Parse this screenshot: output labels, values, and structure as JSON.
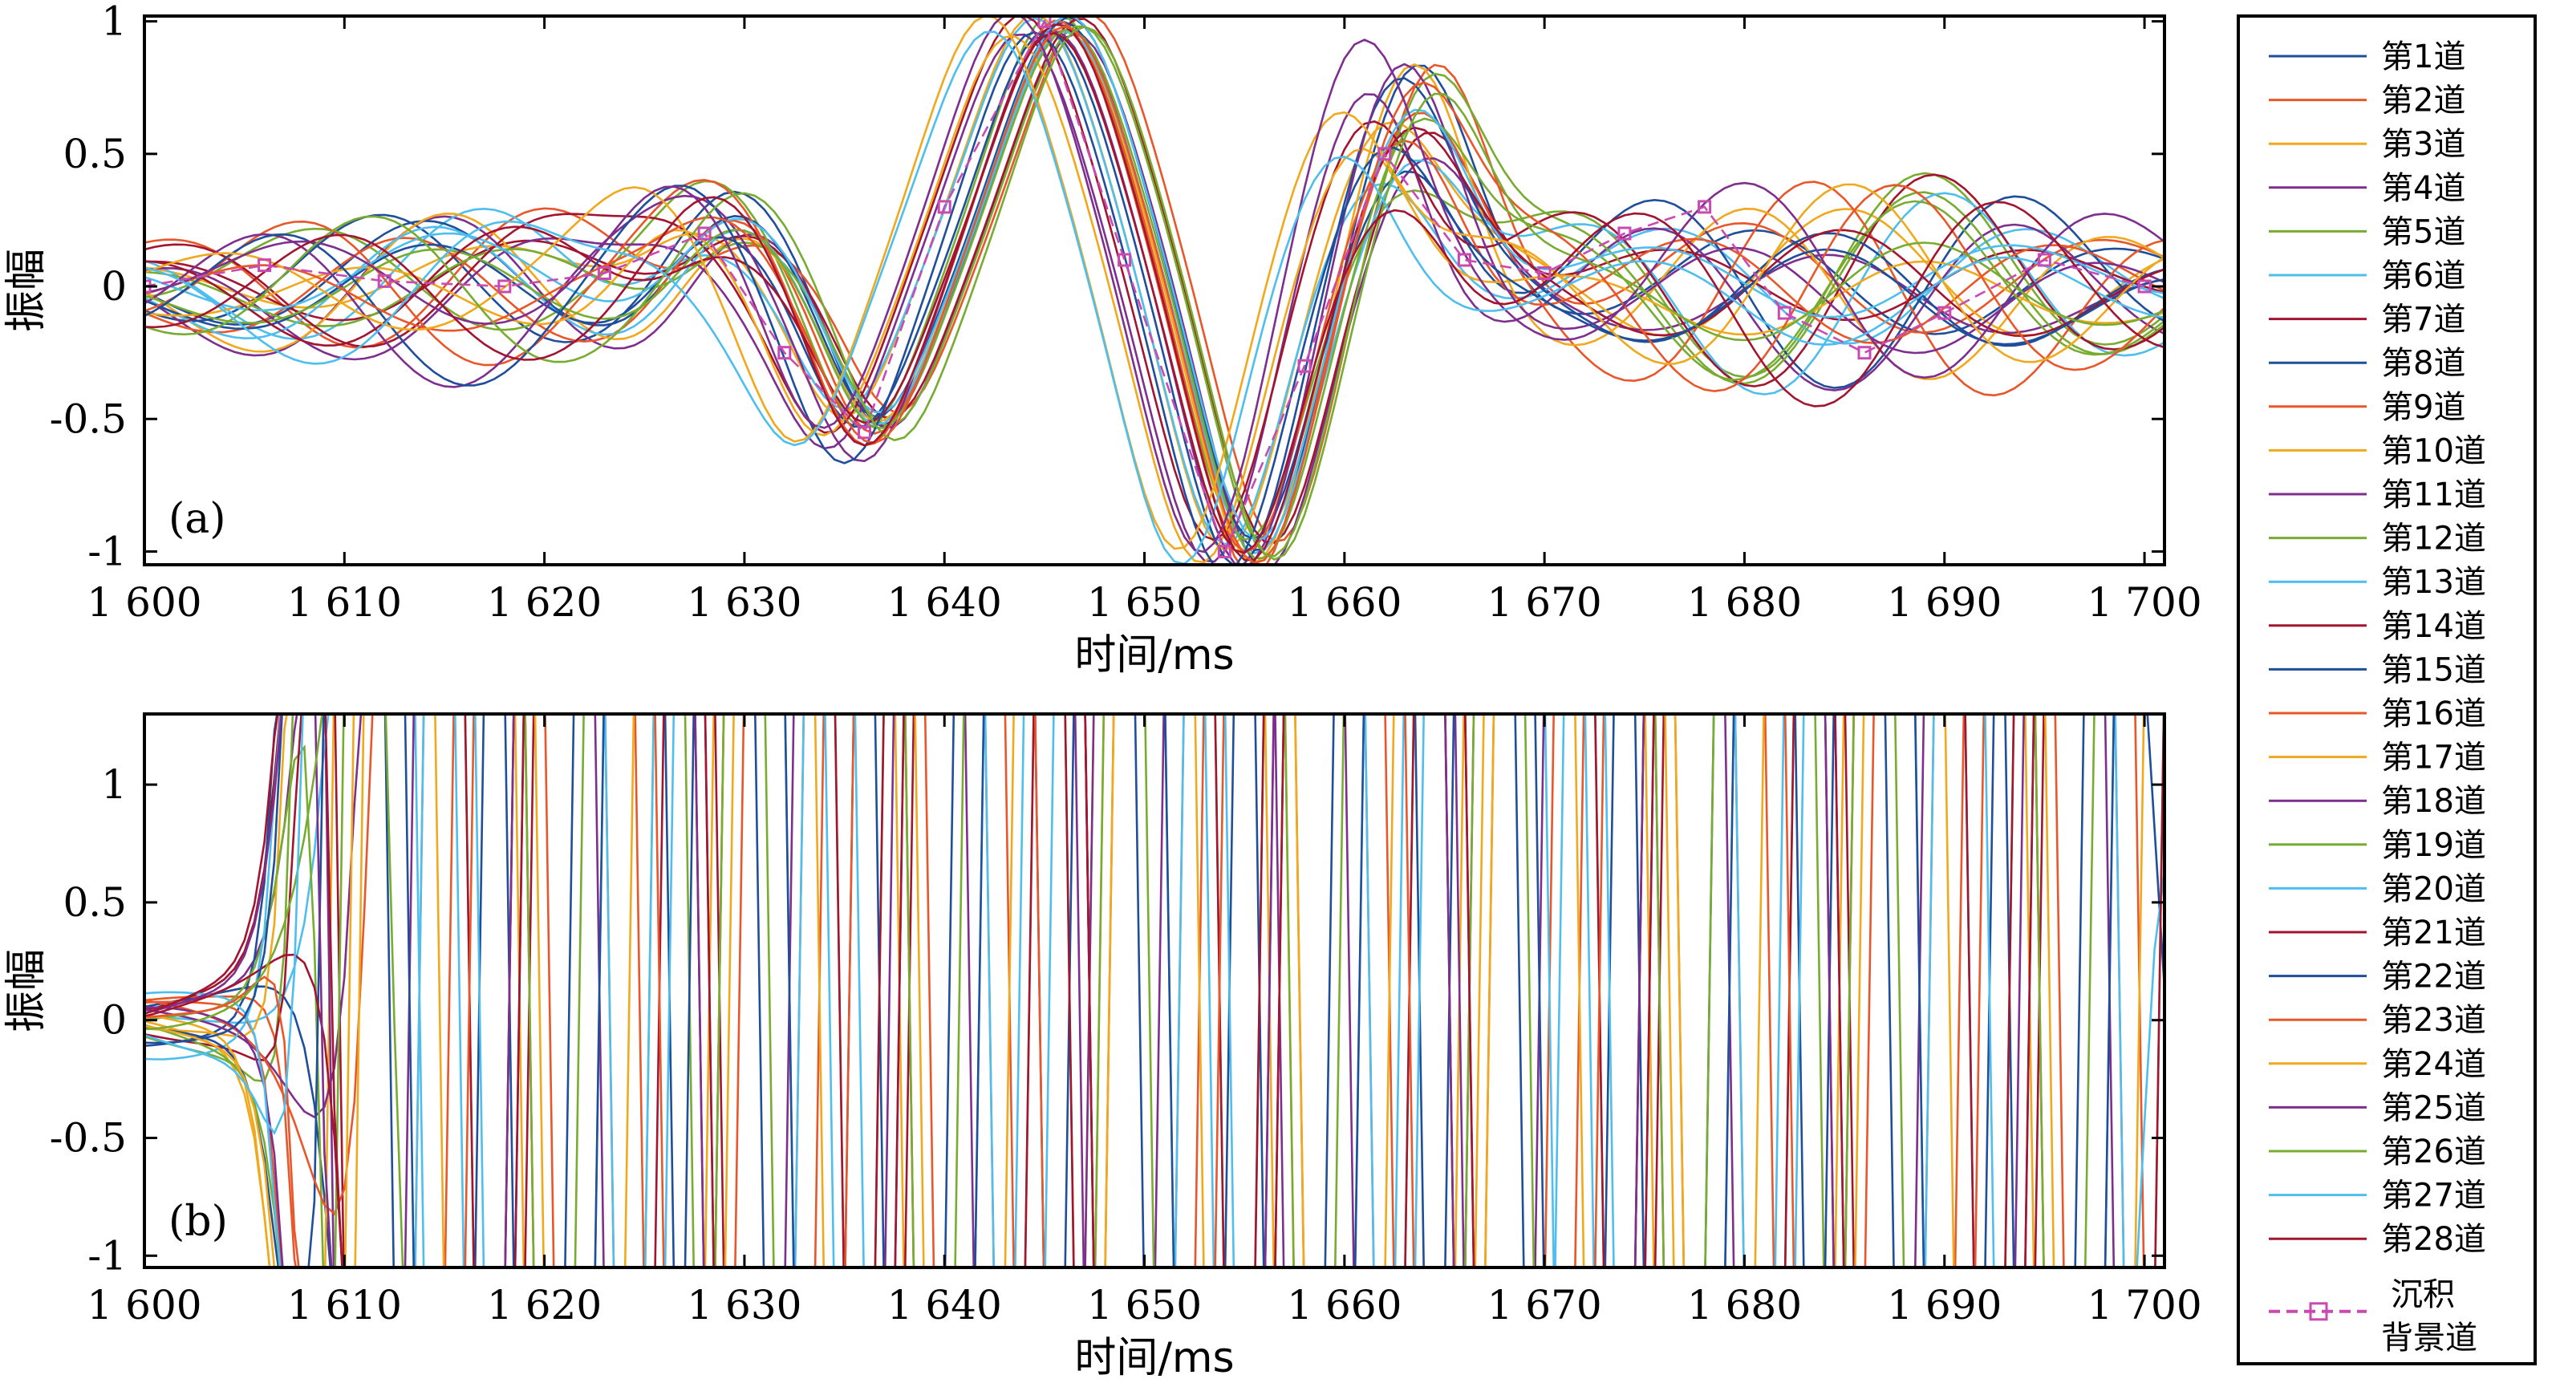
{
  "chart_data": [
    {
      "panel": "(a)",
      "type": "line",
      "xlabel": "时间/ms",
      "ylabel": "振幅",
      "xlim": [
        1600,
        1701
      ],
      "ylim": [
        -1.05,
        1.02
      ],
      "x_ticks": [
        1600,
        1610,
        1620,
        1630,
        1640,
        1650,
        1660,
        1670,
        1680,
        1690,
        1700
      ],
      "x_tick_labels": [
        "1 600",
        "1 610",
        "1 620",
        "1 630",
        "1 640",
        "1 650",
        "1 660",
        "1 670",
        "1 680",
        "1 690",
        "1 700"
      ],
      "y_ticks": [
        1,
        0.5,
        0,
        -0.5,
        -1
      ],
      "y_tick_labels": [
        "1",
        "0.5",
        "0",
        "-0.5",
        "-1"
      ],
      "series_note": "28 traces (第1道–第28道) plus 沉积背景道; all traces share the main wavelet: peak ~1645 ms (~1.0), trough ~1654 ms (~-1.0), secondary peak ~1662 ms (~0.6)",
      "reference_trace": {
        "name": "沉积背景道",
        "x": [
          1600,
          1606,
          1612,
          1618,
          1623,
          1628,
          1632,
          1636,
          1640,
          1645,
          1649,
          1654,
          1658,
          1662,
          1666,
          1670,
          1674,
          1678,
          1682,
          1686,
          1690,
          1695,
          1700
        ],
        "y": [
          0.0,
          0.08,
          0.02,
          0.0,
          0.05,
          0.2,
          -0.25,
          -0.55,
          0.3,
          1.0,
          0.1,
          -1.0,
          -0.3,
          0.5,
          0.1,
          0.05,
          0.2,
          0.3,
          -0.1,
          -0.25,
          -0.1,
          0.1,
          0.0
        ]
      }
    },
    {
      "panel": "(b)",
      "type": "line",
      "xlabel": "时间/ms",
      "ylabel": "振幅",
      "xlim": [
        1600,
        1701
      ],
      "ylim": [
        -1.05,
        1.3
      ],
      "x_ticks": [
        1600,
        1610,
        1620,
        1630,
        1640,
        1650,
        1660,
        1670,
        1680,
        1690,
        1700
      ],
      "x_tick_labels": [
        "1 600",
        "1 610",
        "1 620",
        "1 630",
        "1 640",
        "1 650",
        "1 660",
        "1 670",
        "1 680",
        "1 690",
        "1 700"
      ],
      "y_ticks": [
        1,
        0.5,
        0,
        -0.5,
        -1
      ],
      "y_tick_labels": [
        "1",
        "0.5",
        "0",
        "-0.5",
        "-1"
      ],
      "series_note": "28 residual traces after removing the background trace; maxima ~1.3 near 1636 ms, minima ~-1.05 near 1664 ms"
    }
  ],
  "legend": {
    "entries": [
      {
        "label": "第1道",
        "color": "#1f4e9a"
      },
      {
        "label": "第2道",
        "color": "#e8562a"
      },
      {
        "label": "第3道",
        "color": "#f0a81c"
      },
      {
        "label": "第4道",
        "color": "#7e2f8e"
      },
      {
        "label": "第5道",
        "color": "#77ac30"
      },
      {
        "label": "第6道",
        "color": "#4dbeee"
      },
      {
        "label": "第7道",
        "color": "#a2142f"
      },
      {
        "label": "第8道",
        "color": "#1f4e9a"
      },
      {
        "label": "第9道",
        "color": "#e8562a"
      },
      {
        "label": "第10道",
        "color": "#f0a81c"
      },
      {
        "label": "第11道",
        "color": "#7e2f8e"
      },
      {
        "label": "第12道",
        "color": "#77ac30"
      },
      {
        "label": "第13道",
        "color": "#4dbeee"
      },
      {
        "label": "第14道",
        "color": "#a2142f"
      },
      {
        "label": "第15道",
        "color": "#1f4e9a"
      },
      {
        "label": "第16道",
        "color": "#e8562a"
      },
      {
        "label": "第17道",
        "color": "#f0a81c"
      },
      {
        "label": "第18道",
        "color": "#7e2f8e"
      },
      {
        "label": "第19道",
        "color": "#77ac30"
      },
      {
        "label": "第20道",
        "color": "#4dbeee"
      },
      {
        "label": "第21道",
        "color": "#a2142f"
      },
      {
        "label": "第22道",
        "color": "#1f4e9a"
      },
      {
        "label": "第23道",
        "color": "#e8562a"
      },
      {
        "label": "第24道",
        "color": "#f0a81c"
      },
      {
        "label": "第25道",
        "color": "#7e2f8e"
      },
      {
        "label": "第26道",
        "color": "#77ac30"
      },
      {
        "label": "第27道",
        "color": "#4dbeee"
      },
      {
        "label": "第28道",
        "color": "#a2142f"
      }
    ],
    "background_entry": {
      "label_line1": "沉积",
      "label_line2": "背景道",
      "color": "#c94ab0"
    }
  }
}
